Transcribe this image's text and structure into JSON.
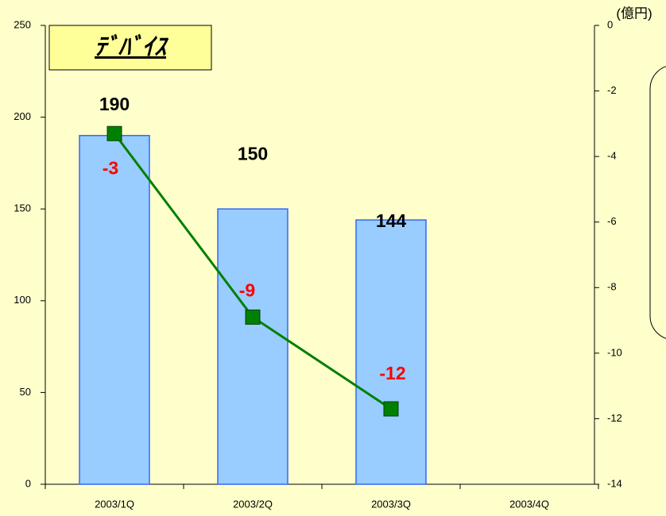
{
  "chart_data": {
    "type": "bar_line",
    "title": "ﾃﾞﾊﾞｲｽ",
    "y2_label": "(億円)",
    "categories": [
      "2003/1Q",
      "2003/2Q",
      "2003/3Q",
      "2003/4Q"
    ],
    "series": [
      {
        "name": "bar",
        "type": "bar",
        "color": "#99ccff",
        "values": [
          190,
          150,
          144,
          null
        ]
      },
      {
        "name": "line",
        "type": "line",
        "axis": "y2",
        "color": "#008000",
        "values": [
          -3.3,
          -8.9,
          -11.7,
          null
        ],
        "value_labels": [
          "-3",
          "-9",
          "-12",
          null
        ]
      }
    ],
    "ylim": [
      0,
      250
    ],
    "yticks": [
      0,
      50,
      100,
      150,
      200,
      250
    ],
    "y2lim": [
      -14,
      0
    ],
    "y2ticks": [
      0,
      -2,
      -4,
      -6,
      -8,
      -10,
      -12,
      -14
    ],
    "grid": false
  }
}
